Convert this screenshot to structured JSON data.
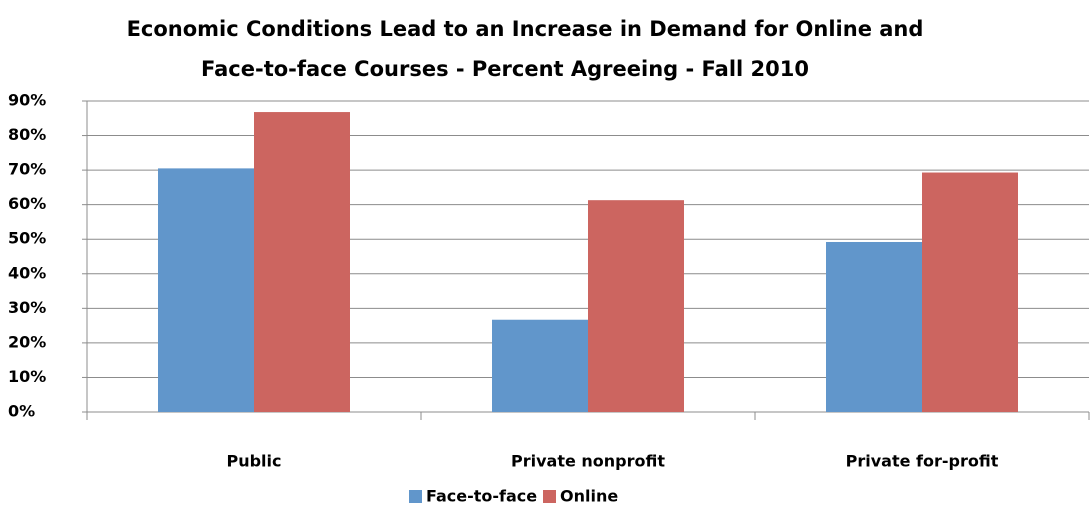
{
  "chart_data": {
    "type": "bar",
    "title": [
      "Economic Conditions Lead to an Increase in Demand for Online and",
      "Face-to-face Courses - Percent Agreeing - Fall 2010"
    ],
    "categories": [
      "Public",
      "Private nonprofit",
      "Private for-profit"
    ],
    "series": [
      {
        "name": "Face-to-face",
        "color": "#6196cb",
        "values": [
          70.5,
          26.7,
          49.2
        ]
      },
      {
        "name": "Online",
        "color": "#cc6560",
        "values": [
          86.8,
          61.3,
          69.3
        ]
      }
    ],
    "ylim": [
      0,
      90
    ],
    "yticks": [
      {
        "value": 0,
        "label": "0%"
      },
      {
        "value": 10,
        "label": "10%"
      },
      {
        "value": 20,
        "label": "20%"
      },
      {
        "value": 30,
        "label": "30%"
      },
      {
        "value": 40,
        "label": "40%"
      },
      {
        "value": 50,
        "label": "50%"
      },
      {
        "value": 60,
        "label": "60%"
      },
      {
        "value": 70,
        "label": "70%"
      },
      {
        "value": 80,
        "label": "80%"
      },
      {
        "value": 90,
        "label": "90%"
      }
    ],
    "grid": true,
    "legend": "bottom"
  }
}
